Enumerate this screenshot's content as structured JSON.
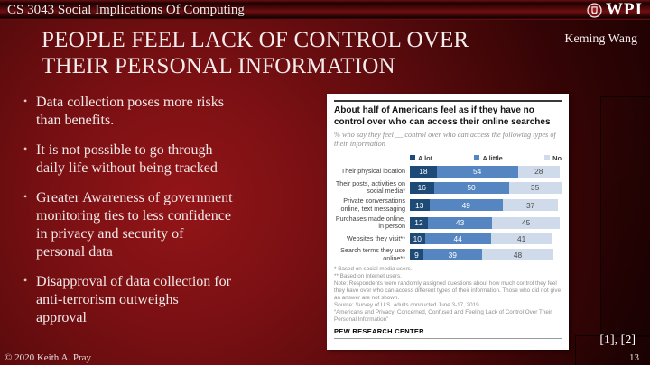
{
  "top_bar": {
    "course": "CS 3043 Social Implications Of Computing"
  },
  "header": {
    "title": "PEOPLE FEEL LACK OF CONTROL OVER THEIR PERSONAL INFORMATION",
    "author": "Keming Wang",
    "logo_text": "WPI"
  },
  "bullets": [
    {
      "lines": [
        " Data collection poses more risks",
        "than benefits."
      ]
    },
    {
      "lines": [
        " It is not possible to go through",
        "daily life without being tracked"
      ]
    },
    {
      "lines": [
        "Greater Awareness of government",
        "monitoring ties to less confidence",
        "in privacy and security of",
        "personal data"
      ]
    },
    {
      "lines": [
        "Disapproval of data collection for",
        "anti-terrorism outweighs",
        "approval"
      ]
    }
  ],
  "chart_data": {
    "type": "bar",
    "orientation": "horizontal-stacked",
    "title": "About half of Americans feel as if they have no control over who can access their online searches",
    "subtitle": "% who say they feel __ control over who can access the following types of their information",
    "legend": [
      "A lot",
      "A little",
      "No"
    ],
    "colors": [
      "#1e4a77",
      "#5586c1",
      "#cfdbea"
    ],
    "categories": [
      "Their physical location",
      "Their posts, activities on social media*",
      "Private conversations online, text messaging",
      "Purchases made online, in person",
      "Websites they visit**",
      "Search terms they use online**"
    ],
    "series": [
      {
        "name": "A lot",
        "values": [
          18,
          16,
          13,
          12,
          10,
          9
        ]
      },
      {
        "name": "A little",
        "values": [
          54,
          50,
          49,
          43,
          44,
          39
        ]
      },
      {
        "name": "No",
        "values": [
          28,
          35,
          37,
          45,
          41,
          48
        ]
      }
    ],
    "footnotes": [
      "* Based on social media users.",
      "** Based on internet users.",
      "Note: Respondents were randomly assigned questions about how much control they feel they have over who can access different types of their information. Those who did not give an answer are not shown.",
      "Source: Survey of U.S. adults conducted June 3-17, 2019.",
      "“Americans and Privacy: Concerned, Confused and Feeling Lack of Control Over Their Personal Information”"
    ],
    "source_label": "PEW RESEARCH CENTER"
  },
  "footer": {
    "copyright": "© 2020 Keith A. Pray",
    "citations": "[1], [2]",
    "page_number": "13"
  }
}
